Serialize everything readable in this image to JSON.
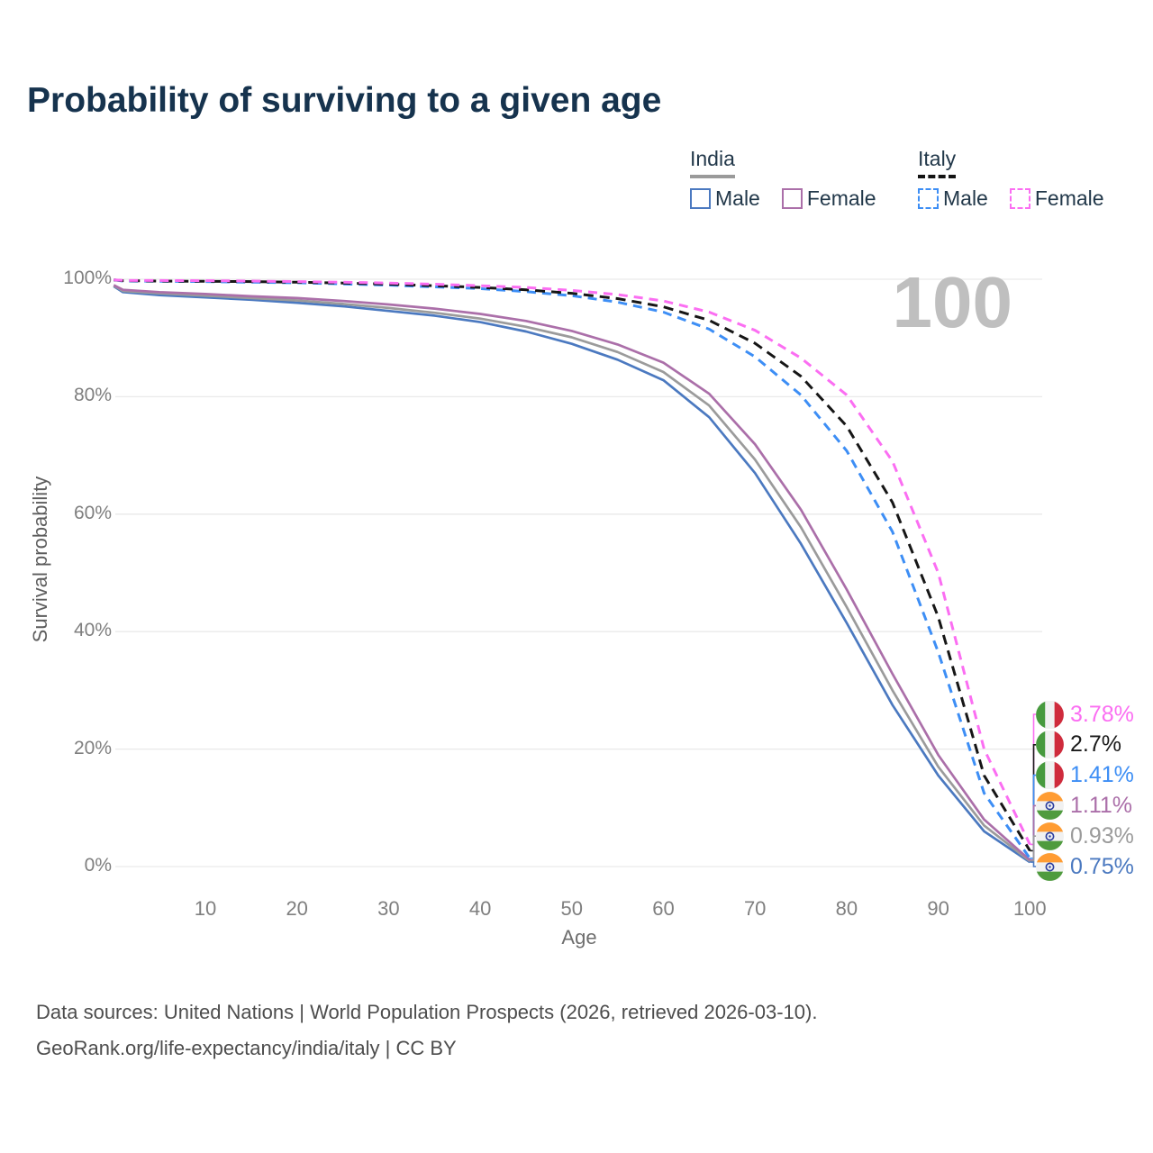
{
  "title": "Probability of surviving to a given age",
  "watermark_age": "100",
  "theme": {
    "title_color": "#16334e",
    "grid_color": "#e9e9e9",
    "tick_color": "#7f7f7f",
    "footer_color": "#4d4d4d",
    "watermark_color": "#bfbfbf"
  },
  "legend": {
    "groups": [
      {
        "label": "India",
        "underline": "solid",
        "items": [
          {
            "label": "Male",
            "color": "#4b79c0",
            "dash": false
          },
          {
            "label": "Female",
            "color": "#ab6fa9",
            "dash": false
          }
        ]
      },
      {
        "label": "Italy",
        "underline": "dashed",
        "items": [
          {
            "label": "Male",
            "color": "#3d8ef5",
            "dash": true
          },
          {
            "label": "Female",
            "color": "#fb6ef2",
            "dash": true
          }
        ]
      }
    ]
  },
  "chart_data": {
    "type": "line",
    "title": "Probability of surviving to a given age",
    "xlabel": "Age",
    "ylabel": "Survival probability",
    "xlim": [
      0,
      100
    ],
    "ylim": [
      0,
      100
    ],
    "grid": "horizontal",
    "x_ticks": [
      10,
      20,
      30,
      40,
      50,
      60,
      70,
      80,
      90,
      100
    ],
    "y_ticks": [
      {
        "label": "0%",
        "value": 0
      },
      {
        "label": "20%",
        "value": 20
      },
      {
        "label": "40%",
        "value": 40
      },
      {
        "label": "60%",
        "value": 60
      },
      {
        "label": "80%",
        "value": 80
      },
      {
        "label": "100%",
        "value": 100
      }
    ],
    "x": [
      0,
      1,
      5,
      10,
      15,
      20,
      25,
      30,
      35,
      40,
      45,
      50,
      55,
      60,
      65,
      70,
      75,
      80,
      85,
      90,
      95,
      100
    ],
    "series": [
      {
        "name": "India Male",
        "country": "India",
        "sex": "Male",
        "color": "#4b79c0",
        "dash": false,
        "y": [
          98.8,
          97.8,
          97.3,
          96.9,
          96.5,
          96.0,
          95.4,
          94.6,
          93.8,
          92.7,
          91.1,
          89.0,
          86.3,
          82.8,
          76.5,
          67.0,
          55.0,
          41.5,
          27.5,
          15.5,
          6.0,
          0.75
        ]
      },
      {
        "name": "India Both sexes",
        "country": "India",
        "sex": "Both",
        "color": "#9b9b9b",
        "dash": false,
        "y": [
          98.9,
          98.0,
          97.6,
          97.2,
          96.8,
          96.4,
          95.8,
          95.1,
          94.3,
          93.3,
          91.9,
          90.1,
          87.6,
          84.2,
          78.5,
          69.3,
          57.8,
          44.2,
          30.0,
          17.0,
          7.0,
          0.93
        ]
      },
      {
        "name": "India Female",
        "country": "India",
        "sex": "Female",
        "color": "#ab6fa9",
        "dash": false,
        "y": [
          99.0,
          98.2,
          97.8,
          97.5,
          97.1,
          96.8,
          96.3,
          95.7,
          95.0,
          94.1,
          92.9,
          91.2,
          88.9,
          85.8,
          80.5,
          71.9,
          60.8,
          47.2,
          32.8,
          19.0,
          8.0,
          1.11
        ]
      },
      {
        "name": "Italy Male",
        "country": "Italy",
        "sex": "Male",
        "color": "#3d8ef5",
        "dash": true,
        "y": [
          99.9,
          99.7,
          99.65,
          99.6,
          99.5,
          99.4,
          99.2,
          99.0,
          98.7,
          98.4,
          97.9,
          97.2,
          96.1,
          94.4,
          91.5,
          86.8,
          80.3,
          70.8,
          57.0,
          36.5,
          12.5,
          1.41
        ]
      },
      {
        "name": "Italy Both sexes",
        "country": "Italy",
        "sex": "Both",
        "color": "#161616",
        "dash": true,
        "y": [
          99.9,
          99.75,
          99.7,
          99.65,
          99.6,
          99.5,
          99.35,
          99.15,
          98.9,
          98.6,
          98.2,
          97.6,
          96.7,
          95.3,
          93.0,
          89.1,
          83.5,
          75.0,
          62.0,
          42.5,
          15.5,
          2.7
        ]
      },
      {
        "name": "Italy Female",
        "country": "Italy",
        "sex": "Female",
        "color": "#fb6ef2",
        "dash": true,
        "y": [
          99.9,
          99.8,
          99.78,
          99.75,
          99.7,
          99.6,
          99.5,
          99.35,
          99.15,
          98.9,
          98.6,
          98.1,
          97.4,
          96.3,
          94.4,
          91.3,
          86.6,
          80.3,
          69.0,
          50.0,
          20.0,
          3.78
        ]
      }
    ],
    "legend_position": "top-right",
    "annotations": {
      "age_cursor": "100"
    }
  },
  "end_labels": [
    {
      "series": "Italy Female",
      "value": "3.78%",
      "end_value": 3.78,
      "color": "#fb6ef2",
      "flag": "italy"
    },
    {
      "series": "Italy Both sexes",
      "value": "2.7%",
      "end_value": 2.7,
      "color": "#1a1a1a",
      "flag": "italy"
    },
    {
      "series": "Italy Male",
      "value": "1.41%",
      "end_value": 1.41,
      "color": "#3d8ef5",
      "flag": "italy"
    },
    {
      "series": "India Female",
      "value": "1.11%",
      "end_value": 1.11,
      "color": "#ab6fa9",
      "flag": "india"
    },
    {
      "series": "India Both sexes",
      "value": "0.93%",
      "end_value": 0.93,
      "color": "#9b9b9b",
      "flag": "india"
    },
    {
      "series": "India Male",
      "value": "0.75%",
      "end_value": 0.75,
      "color": "#4b79c0",
      "flag": "india"
    }
  ],
  "footer": {
    "line1": "Data sources: United Nations | World Population Prospects (2026, retrieved 2026-03-10).",
    "line2": "GeoRank.org/life-expectancy/india/italy | CC BY"
  }
}
